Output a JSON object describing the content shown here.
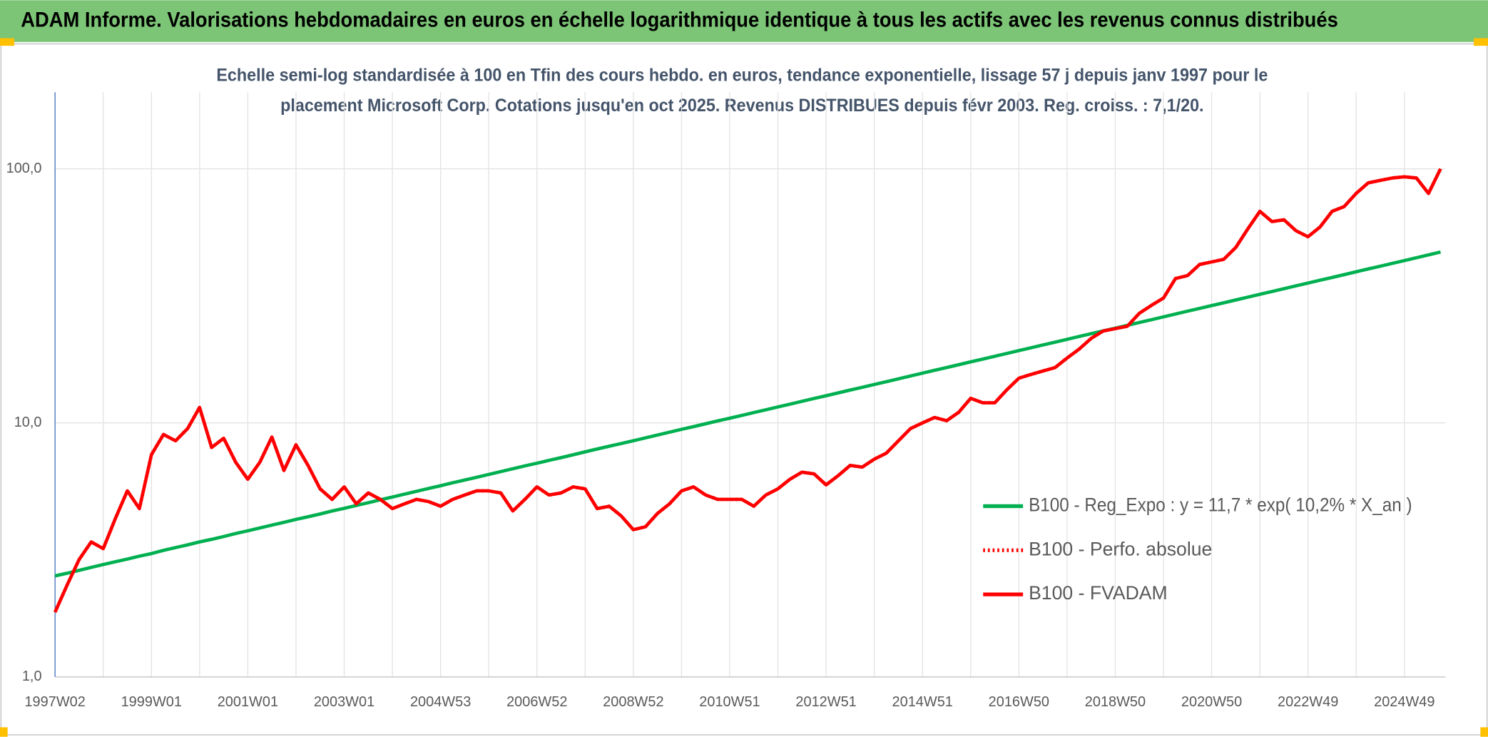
{
  "header": {
    "title": "ADAM Informe. Valorisations hebdomadaires en euros en échelle logarithmique identique à tous les actifs avec les revenus connus distribués"
  },
  "chart_data": {
    "type": "line",
    "title": [
      "Echelle semi-log standardisée à 100 en Tfin des cours hebdo. en euros, tendance exponentielle, lissage 57 j depuis janv 1997 pour le",
      "placement Microsoft Corp. Cotations jusqu'en oct 2025. Revenus DISTRIBUES depuis févr 2003. Reg. croiss. : 7,1/20."
    ],
    "log_scale": true,
    "grid": true,
    "legend": "right",
    "ylim": [
      1,
      200
    ],
    "yticks": [
      {
        "value": 1,
        "label": "1,0"
      },
      {
        "value": 10,
        "label": "10,0"
      },
      {
        "value": 100,
        "label": "100,0"
      }
    ],
    "categories": [
      "1997W02",
      null,
      null,
      null,
      null,
      null,
      null,
      null,
      "1999W01",
      null,
      null,
      null,
      null,
      null,
      null,
      null,
      "2001W01",
      null,
      null,
      null,
      null,
      null,
      null,
      null,
      "2003W01",
      null,
      null,
      null,
      null,
      null,
      null,
      null,
      "2004W53",
      null,
      null,
      null,
      null,
      null,
      null,
      null,
      "2006W52",
      null,
      null,
      null,
      null,
      null,
      null,
      null,
      "2008W52",
      null,
      null,
      null,
      null,
      null,
      null,
      null,
      "2010W51",
      null,
      null,
      null,
      null,
      null,
      null,
      null,
      "2012W51",
      null,
      null,
      null,
      null,
      null,
      null,
      null,
      "2014W51",
      null,
      null,
      null,
      null,
      null,
      null,
      null,
      "2016W50",
      null,
      null,
      null,
      null,
      null,
      null,
      null,
      "2018W50",
      null,
      null,
      null,
      null,
      null,
      null,
      null,
      "2020W50",
      null,
      null,
      null,
      null,
      null,
      null,
      null,
      "2022W49",
      null,
      null,
      null,
      null,
      null,
      null,
      null,
      "2024W49",
      null,
      null,
      null
    ],
    "series": [
      {
        "name": "B100 - Reg_Expo : y = 11,7 * exp( 10,2% *  X_an )",
        "color": "#00b050",
        "dash": "solid",
        "values": [
          2.5,
          2.56,
          2.63,
          2.7,
          2.77,
          2.84,
          2.91,
          2.99,
          3.06,
          3.15,
          3.23,
          3.31,
          3.4,
          3.48,
          3.57,
          3.67,
          3.76,
          3.86,
          3.96,
          4.06,
          4.17,
          4.27,
          4.38,
          4.5,
          4.61,
          4.73,
          4.85,
          4.98,
          5.11,
          5.24,
          5.38,
          5.52,
          5.66,
          5.81,
          5.96,
          6.11,
          6.27,
          6.43,
          6.6,
          6.77,
          6.94,
          7.12,
          7.3,
          7.49,
          7.69,
          7.89,
          8.09,
          8.3,
          8.51,
          8.73,
          8.96,
          9.19,
          9.43,
          9.67,
          9.92,
          10.18,
          10.43,
          10.7,
          10.98,
          11.26,
          11.55,
          11.85,
          12.16,
          12.47,
          12.79,
          13.12,
          13.46,
          13.81,
          14.17,
          14.53,
          14.91,
          15.29,
          15.69,
          16.1,
          16.51,
          16.94,
          17.38,
          17.83,
          18.29,
          18.76,
          19.25,
          19.75,
          20.26,
          20.78,
          21.32,
          21.87,
          22.44,
          23.02,
          23.6,
          24.21,
          24.84,
          25.48,
          26.14,
          26.82,
          27.51,
          28.22,
          28.94,
          29.69,
          30.46,
          31.25,
          32.06,
          32.89,
          33.74,
          34.61,
          35.5,
          36.42,
          37.36,
          38.33,
          39.32,
          40.34,
          41.38,
          42.45,
          43.54,
          44.67,
          45.83,
          47.01
        ]
      },
      {
        "name": "B100 - Perfo. absolue",
        "color": "#ff0000",
        "dash": "dotted",
        "values": [
          1.8,
          2.3,
          2.9,
          3.4,
          3.2,
          4.2,
          5.4,
          4.6,
          7.5,
          9.0,
          8.5,
          9.5,
          11.5,
          8.0,
          8.7,
          7.0,
          6.0,
          7.0,
          8.8,
          6.5,
          8.2,
          6.8,
          5.5,
          5.0,
          5.6,
          4.8,
          5.3,
          5.0,
          4.6,
          4.8,
          5.0,
          4.9,
          4.7,
          5.0,
          5.2,
          5.4,
          5.4,
          5.3,
          4.5,
          5.0,
          5.6,
          5.2,
          5.3,
          5.6,
          5.5,
          4.6,
          4.7,
          4.3,
          3.8,
          3.9,
          4.4,
          4.8,
          5.4,
          5.6,
          5.2,
          5.0,
          5.0,
          5.0,
          4.7,
          5.2,
          5.5,
          6.0,
          6.4,
          6.3,
          5.7,
          6.2,
          6.8,
          6.7,
          7.2,
          7.6,
          8.5,
          9.5,
          10.0,
          10.5,
          10.2,
          11.0,
          12.5,
          12.0,
          12.0,
          13.5,
          15.0,
          15.5,
          16.0,
          16.5,
          18.0,
          19.5,
          21.5,
          23.0,
          23.5,
          24.0,
          27.0,
          29.0,
          31.0,
          37.0,
          38.0,
          42.0,
          43.0,
          44.0,
          49.0,
          58.0,
          68.0,
          62.0,
          63.0,
          57.0,
          54.0,
          59.0,
          68.0,
          71.0,
          80.0,
          88.0,
          90.0,
          92.0,
          93.0,
          92.0,
          80.0,
          100.0
        ]
      },
      {
        "name": "B100 - FVADAM",
        "color": "#ff0000",
        "dash": "solid",
        "values": [
          1.8,
          2.3,
          2.9,
          3.4,
          3.2,
          4.2,
          5.4,
          4.6,
          7.5,
          9.0,
          8.5,
          9.5,
          11.5,
          8.0,
          8.7,
          7.0,
          6.0,
          7.0,
          8.8,
          6.5,
          8.2,
          6.8,
          5.5,
          5.0,
          5.6,
          4.8,
          5.3,
          5.0,
          4.6,
          4.8,
          5.0,
          4.9,
          4.7,
          5.0,
          5.2,
          5.4,
          5.4,
          5.3,
          4.5,
          5.0,
          5.6,
          5.2,
          5.3,
          5.6,
          5.5,
          4.6,
          4.7,
          4.3,
          3.8,
          3.9,
          4.4,
          4.8,
          5.4,
          5.6,
          5.2,
          5.0,
          5.0,
          5.0,
          4.7,
          5.2,
          5.5,
          6.0,
          6.4,
          6.3,
          5.7,
          6.2,
          6.8,
          6.7,
          7.2,
          7.6,
          8.5,
          9.5,
          10.0,
          10.5,
          10.2,
          11.0,
          12.5,
          12.0,
          12.0,
          13.5,
          15.0,
          15.5,
          16.0,
          16.5,
          18.0,
          19.5,
          21.5,
          23.0,
          23.5,
          24.0,
          27.0,
          29.0,
          31.0,
          37.0,
          38.0,
          42.0,
          43.0,
          44.0,
          49.0,
          58.0,
          68.0,
          62.0,
          63.0,
          57.0,
          54.0,
          59.0,
          68.0,
          71.0,
          80.0,
          88.0,
          90.0,
          92.0,
          93.0,
          92.0,
          80.0,
          100.0
        ]
      }
    ]
  }
}
